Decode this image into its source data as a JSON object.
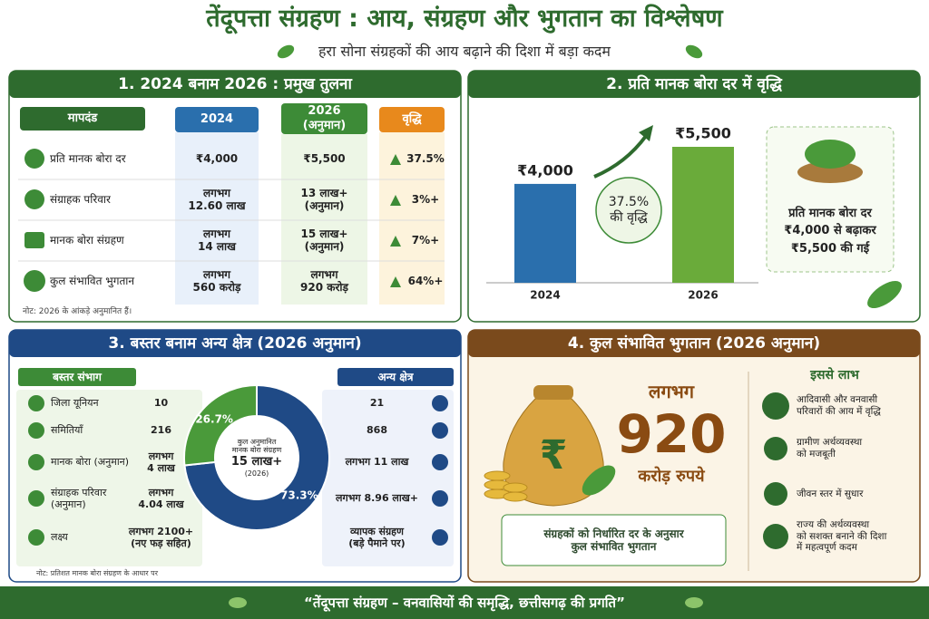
{
  "header": {
    "title": "तेंदूपत्ता संग्रहण : आय, संग्रहण और भुगतान का विश्लेषण",
    "subtitle": "हरा सोना संग्रहकों की आय बढ़ाने की दिशा में बड़ा कदम"
  },
  "panel1": {
    "title": "1. 2024 बनाम 2026 : प्रमुख तुलना",
    "columns": [
      "मापदंड",
      "2024",
      [
        "2026",
        "(अनुमान)"
      ],
      "वृद्धि"
    ],
    "rows": [
      {
        "label": "प्रति मानक बोरा दर",
        "y2024": [
          "₹4,000"
        ],
        "y2026": [
          "₹5,500"
        ],
        "growth": "37.5%"
      },
      {
        "label": "संग्राहक परिवार",
        "y2024": [
          "लगभग",
          "12.60 लाख"
        ],
        "y2026": [
          "13 लाख+",
          "(अनुमान)"
        ],
        "growth": "3%+"
      },
      {
        "label": "मानक बोरा संग्रहण",
        "y2024": [
          "लगभग",
          "14 लाख"
        ],
        "y2026": [
          "15 लाख+",
          "(अनुमान)"
        ],
        "growth": "7%+"
      },
      {
        "label": "कुल संभावित भुगतान",
        "y2024": [
          "लगभग",
          "560 करोड़"
        ],
        "y2026": [
          "लगभग",
          "920 करोड़"
        ],
        "growth": "64%+"
      }
    ],
    "note": "नोट: 2026 के आंकड़े अनुमानित हैं।"
  },
  "panel2": {
    "title": "2. प्रति मानक बोरा दर में वृद्धि",
    "badge": [
      "37.5%",
      "की वृद्धि"
    ],
    "callout": [
      "प्रति मानक बोरा दर",
      "₹4,000 से बढ़ाकर",
      "₹5,500 की गई"
    ]
  },
  "panel3": {
    "title": "3. बस्तर बनाम अन्य क्षेत्र (2026 अनुमान)",
    "left_header": "बस्तर संभाग",
    "right_header": "अन्य क्षेत्र",
    "rows": [
      {
        "label": [
          "जिला यूनियन"
        ],
        "bastar": [
          "10"
        ],
        "other": [
          "21"
        ]
      },
      {
        "label": [
          "समितियाँ"
        ],
        "bastar": [
          "216"
        ],
        "other": [
          "868"
        ]
      },
      {
        "label": [
          "मानक बोरा (अनुमान)"
        ],
        "bastar": [
          "लगभग",
          "4 लाख"
        ],
        "other": [
          "लगभग 11 लाख"
        ]
      },
      {
        "label": [
          "संग्राहक परिवार",
          "(अनुमान)"
        ],
        "bastar": [
          "लगभग",
          "4.04 लाख"
        ],
        "other": [
          "लगभग 8.96 लाख+"
        ]
      },
      {
        "label": [
          "लक्ष्य"
        ],
        "bastar": [
          "लगभग 2100+",
          "(नए फड़ सहित)"
        ],
        "other": [
          "व्यापक संग्रहण",
          "(बड़े पैमाने पर)"
        ]
      }
    ],
    "center_text": [
      "कुल अनुमानित",
      "मानक बोरा संग्रहण",
      "15 लाख+",
      "(2026)"
    ],
    "note": "नोट: प्रतिशत मानक बोरा संग्रहण के आधार पर"
  },
  "panel4": {
    "title": "4. कुल संभावित भुगतान (2026 अनुमान)",
    "approx": "लगभग",
    "amount": "920",
    "unit": "करोड़ रुपये",
    "caption": [
      "संग्रहकों को निर्धारित दर के अनुसार",
      "कुल संभावित भुगतान"
    ],
    "benefits_title": "इससे लाभ",
    "benefits": [
      [
        "आदिवासी और वनवासी",
        "परिवारों की आय में वृद्धि"
      ],
      [
        "ग्रामीण अर्थव्यवस्था",
        "को मजबूती"
      ],
      [
        "जीवन स्तर में सुधार"
      ],
      [
        "राज्य की अर्थव्यवस्था",
        "को सशक्त बनाने की दिशा",
        "में महत्वपूर्ण कदम"
      ]
    ]
  },
  "footer": "“तेंदूपत्ता संग्रहण – वनवासियों की समृद्धि, छत्तीसगढ़ की प्रगति”",
  "chart_data": [
    {
      "type": "bar",
      "categories": [
        "2024",
        "2026"
      ],
      "values": [
        4000,
        5500
      ],
      "value_labels": [
        "₹4,000",
        "₹5,500"
      ],
      "colors": [
        "#2a6fad",
        "#6aab3a"
      ]
    },
    {
      "type": "donut",
      "values": [
        73.3,
        26.7
      ],
      "value_labels": [
        "73.3%",
        "26.7%"
      ],
      "colors": [
        "#1f4a86",
        "#4a9a3a"
      ]
    }
  ]
}
